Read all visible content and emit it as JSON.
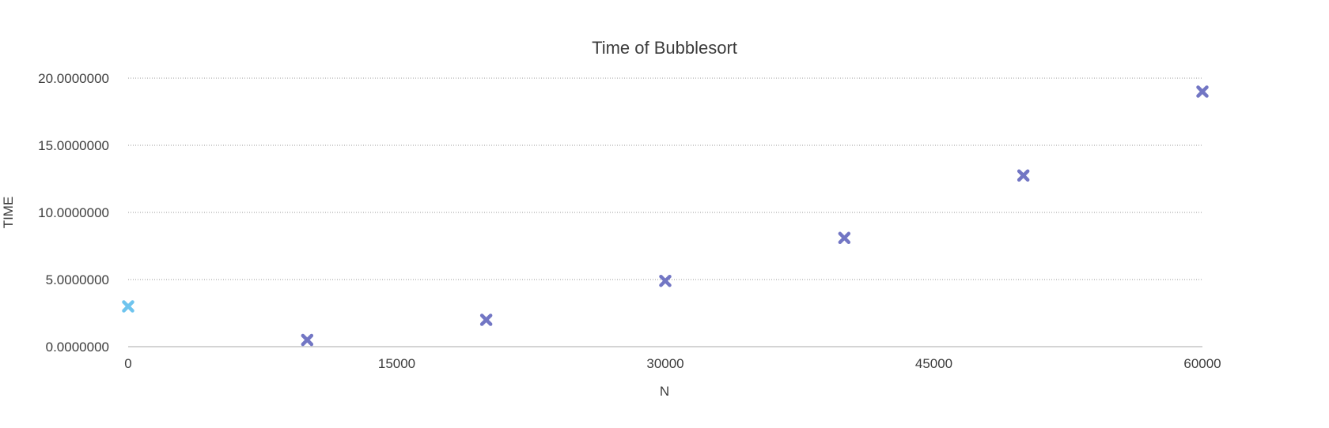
{
  "chart_data": {
    "type": "scatter",
    "title": "Time of Bubblesort",
    "xlabel": "N",
    "ylabel": "TIME",
    "xlim": [
      0,
      60000
    ],
    "ylim": [
      0,
      20
    ],
    "x_ticks": [
      "0",
      "15000",
      "30000",
      "45000",
      "60000"
    ],
    "x_tick_values": [
      0,
      15000,
      30000,
      45000,
      60000
    ],
    "y_ticks": [
      "0.0000000",
      "5.0000000",
      "10.0000000",
      "15.0000000",
      "20.0000000"
    ],
    "y_tick_values": [
      0,
      5,
      10,
      15,
      20
    ],
    "grid": true,
    "legend": "none",
    "marker": "x",
    "series": [
      {
        "color": "#7276c4",
        "points": [
          {
            "x": 0,
            "y": 3.0,
            "color": "#6ec4ee"
          },
          {
            "x": 10000,
            "y": 0.5
          },
          {
            "x": 20000,
            "y": 2.0
          },
          {
            "x": 30000,
            "y": 4.9
          },
          {
            "x": 40000,
            "y": 8.1
          },
          {
            "x": 50000,
            "y": 12.75
          },
          {
            "x": 60000,
            "y": 19.0
          }
        ]
      }
    ]
  }
}
